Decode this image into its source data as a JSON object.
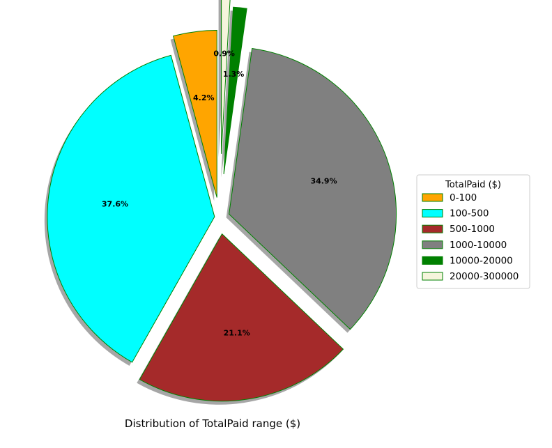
{
  "chart_data": {
    "type": "pie",
    "title": "Distribution of TotalPaid range ($)",
    "legend": {
      "title": "TotalPaid ($)",
      "placement": "right"
    },
    "slices": [
      {
        "label": "0-100",
        "value": 4.2,
        "pct_text": "4.2%",
        "color": "#ffa500"
      },
      {
        "label": "100-500",
        "value": 37.6,
        "pct_text": "37.6%",
        "color": "#00ffff"
      },
      {
        "label": "500-1000",
        "value": 21.1,
        "pct_text": "21.1%",
        "color": "#a52a2a"
      },
      {
        "label": "1000-10000",
        "value": 34.9,
        "pct_text": "34.9%",
        "color": "#808080"
      },
      {
        "label": "10000-20000",
        "value": 1.3,
        "pct_text": "1.3%",
        "color": "#008000"
      },
      {
        "label": "20000-300000",
        "value": 0.9,
        "pct_text": "0.9%",
        "color": "#f5f5dc"
      }
    ],
    "edge_color": "#008000",
    "shadow": true,
    "start_angle_deg": 90,
    "direction": "counterclockwise"
  }
}
